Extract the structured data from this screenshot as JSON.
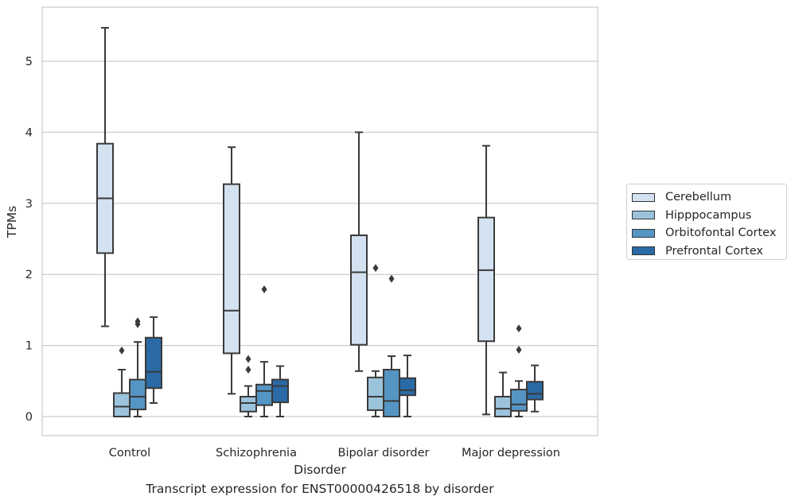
{
  "chart_data": {
    "type": "box",
    "xlabel": "Disorder",
    "ylabel": "TPMs",
    "caption": "Transcript expression for ENST00000426518 by disorder",
    "ylim": [
      -0.27,
      5.8
    ],
    "yticks": [
      "0",
      "1",
      "2",
      "3",
      "4",
      "5"
    ],
    "grid": true,
    "legend_position": "right",
    "categories": [
      "Control",
      "Schizophrenia",
      "Bipolar disorder",
      "Major depression"
    ],
    "series": [
      {
        "name": "Cerebellum",
        "color": "#d3e1f0",
        "boxes": [
          {
            "whisker_low": 1.27,
            "q1": 2.3,
            "median": 3.07,
            "q3": 3.84,
            "whisker_high": 5.47,
            "outliers": []
          },
          {
            "whisker_low": 0.32,
            "q1": 0.89,
            "median": 1.49,
            "q3": 3.27,
            "whisker_high": 3.79,
            "outliers": []
          },
          {
            "whisker_low": 0.64,
            "q1": 1.01,
            "median": 2.03,
            "q3": 2.55,
            "whisker_high": 4.0,
            "outliers": []
          },
          {
            "whisker_low": 0.03,
            "q1": 1.06,
            "median": 2.06,
            "q3": 2.8,
            "whisker_high": 3.81,
            "outliers": []
          }
        ]
      },
      {
        "name": "Hipppocampus",
        "color": "#9cc3dc",
        "boxes": [
          {
            "whisker_low": 0.0,
            "q1": 0.0,
            "median": 0.14,
            "q3": 0.33,
            "whisker_high": 0.66,
            "outliers": [
              0.93
            ]
          },
          {
            "whisker_low": 0.0,
            "q1": 0.07,
            "median": 0.19,
            "q3": 0.28,
            "whisker_high": 0.43,
            "outliers": [
              0.66,
              0.81
            ]
          },
          {
            "whisker_low": 0.0,
            "q1": 0.09,
            "median": 0.28,
            "q3": 0.55,
            "whisker_high": 0.64,
            "outliers": [
              2.09
            ]
          },
          {
            "whisker_low": 0.0,
            "q1": 0.0,
            "median": 0.11,
            "q3": 0.28,
            "whisker_high": 0.62,
            "outliers": []
          }
        ]
      },
      {
        "name": "Orbitofontal Cortex",
        "color": "#5595c3",
        "boxes": [
          {
            "whisker_low": 0.0,
            "q1": 0.1,
            "median": 0.28,
            "q3": 0.52,
            "whisker_high": 1.05,
            "outliers": [
              1.3,
              1.34
            ]
          },
          {
            "whisker_low": 0.0,
            "q1": 0.16,
            "median": 0.36,
            "q3": 0.45,
            "whisker_high": 0.77,
            "outliers": [
              1.79
            ]
          },
          {
            "whisker_low": 0.0,
            "q1": 0.0,
            "median": 0.22,
            "q3": 0.66,
            "whisker_high": 0.85,
            "outliers": [
              1.94
            ]
          },
          {
            "whisker_low": 0.0,
            "q1": 0.08,
            "median": 0.17,
            "q3": 0.38,
            "whisker_high": 0.5,
            "outliers": [
              0.94,
              1.24
            ]
          }
        ]
      },
      {
        "name": "Prefrontal Cortex",
        "color": "#2a6aa6",
        "boxes": [
          {
            "whisker_low": 0.19,
            "q1": 0.4,
            "median": 0.63,
            "q3": 1.11,
            "whisker_high": 1.4,
            "outliers": []
          },
          {
            "whisker_low": 0.0,
            "q1": 0.2,
            "median": 0.43,
            "q3": 0.52,
            "whisker_high": 0.71,
            "outliers": []
          },
          {
            "whisker_low": 0.0,
            "q1": 0.3,
            "median": 0.37,
            "q3": 0.54,
            "whisker_high": 0.86,
            "outliers": []
          },
          {
            "whisker_low": 0.07,
            "q1": 0.24,
            "median": 0.32,
            "q3": 0.49,
            "whisker_high": 0.72,
            "outliers": []
          }
        ]
      }
    ]
  }
}
